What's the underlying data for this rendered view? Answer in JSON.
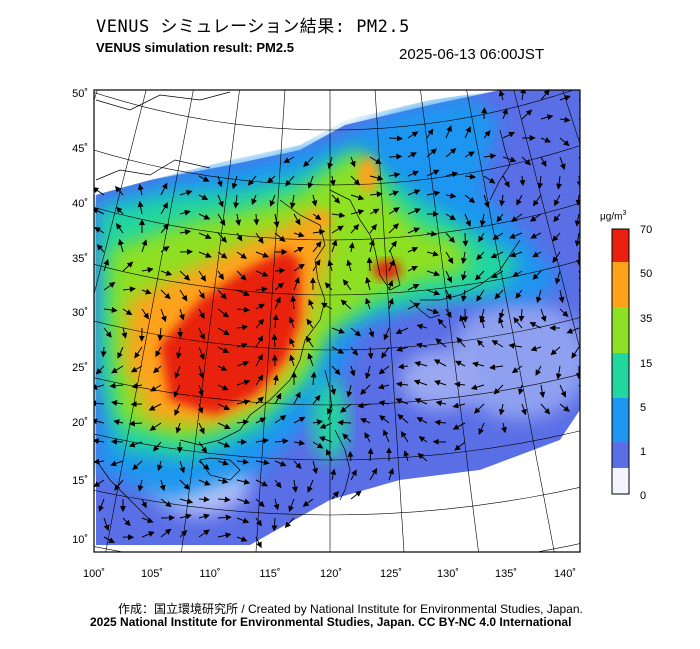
{
  "header": {
    "title_jp": "VENUS シミュレーション結果: PM2.5",
    "title_en": "VENUS simulation result: PM2.5",
    "datetime": "2025-06-13 06:00JST"
  },
  "map": {
    "lat_ticks": [
      "50˚",
      "45˚",
      "40˚",
      "35˚",
      "30˚",
      "25˚",
      "20˚",
      "15˚",
      "10˚"
    ],
    "lon_ticks": [
      "100˚",
      "105˚",
      "110˚",
      "115˚",
      "120˚",
      "125˚",
      "130˚",
      "135˚",
      "140˚"
    ],
    "lat_values": [
      50,
      45,
      40,
      35,
      30,
      25,
      20,
      15,
      10
    ],
    "lon_values": [
      100,
      105,
      110,
      115,
      120,
      125,
      130,
      135,
      140
    ]
  },
  "colorbar": {
    "unit_base": "μg/m",
    "unit_sup": "3",
    "labels": [
      "70",
      "50",
      "35",
      "15",
      "5",
      "1",
      "0"
    ],
    "colors": {
      "c0": "#f4f4ff",
      "c1": "#5a6ee6",
      "c5": "#1e96f0",
      "c15": "#22d6a0",
      "c35": "#8ee024",
      "c50": "#ffa21a",
      "c70": "#e8200e"
    }
  },
  "footer": {
    "credit_line": "作成：国立環境研究所 / Created by National Institute for Environmental Studies, Japan.",
    "license_line": "2025 National Institute for Environmental Studies, Japan. CC BY-NC 4.0 International"
  }
}
